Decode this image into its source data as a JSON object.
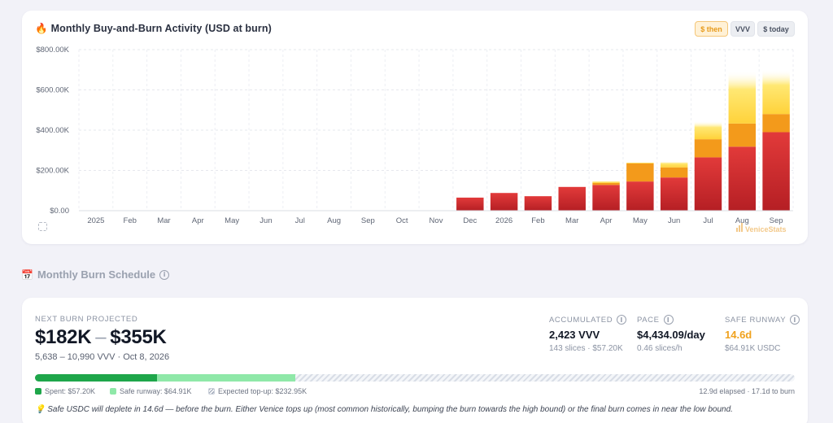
{
  "chart": {
    "icon": "fire-icon",
    "title": "Monthly Buy-and-Burn Activity (USD at burn)",
    "toggles": [
      "$ then",
      "VVV",
      "$ today"
    ],
    "active_toggle": "$ then",
    "watermark_brand": "VeniceStats",
    "watermark_icon": "bars-icon"
  },
  "chart_data": {
    "type": "bar",
    "stacked": true,
    "categories": [
      "Dec",
      "2026",
      "Feb",
      "Mar",
      "Apr",
      "May",
      "Jun",
      "Jul",
      "Aug",
      "Sep"
    ],
    "x_ticks": [
      "2025",
      "Feb",
      "Mar",
      "Apr",
      "May",
      "Jun",
      "Jul",
      "Aug",
      "Sep",
      "Oct",
      "Nov",
      "Dec",
      "2026",
      "Feb",
      "Mar",
      "Apr",
      "May",
      "Jun",
      "Jul",
      "Aug",
      "Sep"
    ],
    "y_ticks": [
      "$0.00",
      "$200.00K",
      "$400.00K",
      "$600.00K",
      "$800.00K"
    ],
    "ylim": [
      0,
      800000
    ],
    "series": [
      {
        "values": [
          65000,
          88000,
          72000,
          118000,
          128000,
          145000,
          165000,
          265000,
          318000,
          390000
        ],
        "color": "#d02b2b"
      },
      {
        "values": [
          0,
          0,
          0,
          0,
          10000,
          90000,
          50000,
          90000,
          115000,
          90000
        ],
        "color": "#f39a1b"
      },
      {
        "values": [
          0,
          0,
          0,
          0,
          9000,
          5000,
          30000,
          90000,
          260000,
          220000
        ],
        "color": "#ffe05c"
      }
    ],
    "grid": true
  },
  "burn": {
    "section_title": "Monthly Burn Schedule",
    "section_icon": "calendar-icon",
    "projected_label": "Next Burn Projected",
    "low": "$182K",
    "separator": "–",
    "high": "$355K",
    "sub": "5,638 – 10,990 VVV · Oct 8, 2026",
    "accumulated": {
      "label": "Accumulated",
      "value": "2,423 VVV",
      "sub": "143 slices · $57.20K"
    },
    "pace": {
      "label": "Pace",
      "value": "$4,434.09/day",
      "sub": "0.46 slices/h"
    },
    "runway": {
      "label": "Safe Runway",
      "value": "14.6d",
      "sub": "$64.91K USDC",
      "color": "#f0a21e"
    },
    "progress": {
      "spent_fraction": 0.161,
      "safe_fraction": 0.182
    },
    "legend": {
      "spent": "Spent: $57.20K",
      "safe": "Safe runway: $64.91K",
      "expected": "Expected top-up: $232.95K"
    },
    "elapsed": "12.9d elapsed · 17.1d to burn",
    "note_icon": "lightbulb-icon",
    "note": "Safe USDC will deplete in 14.6d — before the burn. Either Venice tops up (most common historically, bumping the burn towards the high bound) or the final burn comes in near the low bound."
  }
}
